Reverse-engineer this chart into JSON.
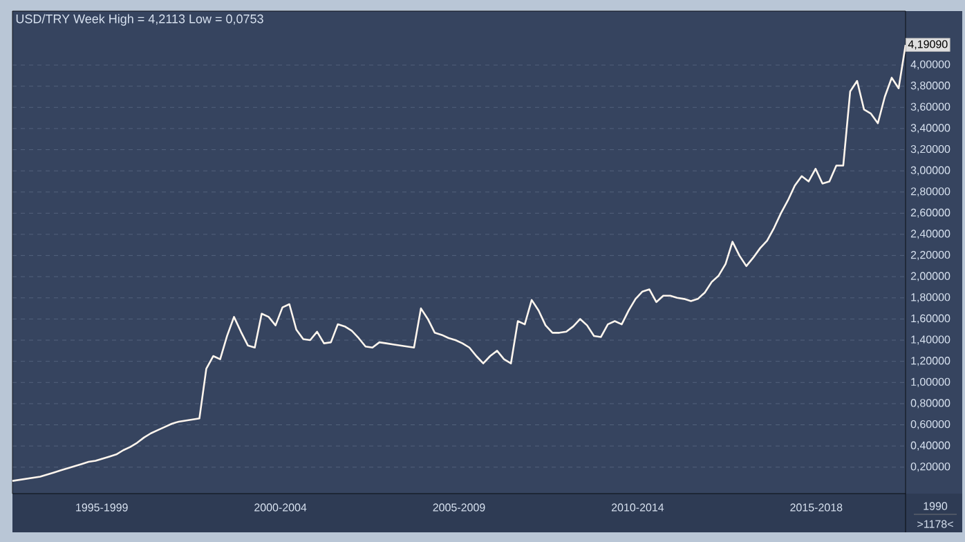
{
  "chart_data": {
    "type": "line",
    "title": "USD/TRY Week High = 4,2113 Low = 0,0753",
    "categories": [
      null,
      null,
      null,
      null,
      null,
      null,
      null,
      null,
      null,
      null,
      null,
      null,
      null,
      null,
      null,
      null,
      null,
      null,
      null,
      null,
      null,
      null,
      null,
      null,
      null,
      null,
      null,
      null,
      null,
      null,
      null,
      null,
      null,
      null,
      null,
      null,
      null,
      null,
      null,
      null,
      null,
      null,
      null,
      null,
      null,
      null,
      null,
      null,
      null,
      null,
      null,
      null,
      null,
      null,
      null,
      null,
      null,
      null,
      null,
      null,
      null,
      null,
      null,
      null,
      null,
      null,
      null,
      null,
      null,
      null,
      null,
      null,
      null,
      null,
      null,
      null,
      null,
      null,
      null,
      null,
      null,
      null,
      null,
      null,
      null,
      null,
      null,
      null,
      null,
      null,
      null,
      null,
      null,
      null,
      null,
      null,
      null,
      null,
      null,
      null,
      null,
      null,
      null,
      null,
      null,
      null,
      null,
      null,
      null,
      null,
      null,
      null,
      null,
      null,
      null,
      null,
      null,
      null,
      null,
      null,
      null,
      null,
      null,
      null,
      null,
      null,
      null,
      null,
      null,
      null
    ],
    "values": [
      0.07,
      0.08,
      0.09,
      0.1,
      0.11,
      0.13,
      0.15,
      0.17,
      0.19,
      0.21,
      0.23,
      0.25,
      0.26,
      0.28,
      0.3,
      0.32,
      0.36,
      0.39,
      0.43,
      0.48,
      0.52,
      0.55,
      0.58,
      0.61,
      0.63,
      0.64,
      0.65,
      0.66,
      1.13,
      1.25,
      1.22,
      1.44,
      1.62,
      1.48,
      1.35,
      1.33,
      1.65,
      1.62,
      1.54,
      1.71,
      1.74,
      1.5,
      1.41,
      1.4,
      1.48,
      1.37,
      1.38,
      1.55,
      1.53,
      1.49,
      1.42,
      1.34,
      1.33,
      1.38,
      1.37,
      1.36,
      1.35,
      1.34,
      1.33,
      1.7,
      1.6,
      1.47,
      1.45,
      1.42,
      1.4,
      1.37,
      1.33,
      1.25,
      1.18,
      1.25,
      1.3,
      1.22,
      1.18,
      1.58,
      1.55,
      1.78,
      1.68,
      1.54,
      1.47,
      1.47,
      1.48,
      1.53,
      1.6,
      1.54,
      1.44,
      1.43,
      1.55,
      1.58,
      1.55,
      1.68,
      1.79,
      1.86,
      1.88,
      1.76,
      1.82,
      1.82,
      1.8,
      1.79,
      1.77,
      1.79,
      1.85,
      1.95,
      2.01,
      2.12,
      2.33,
      2.2,
      2.1,
      2.18,
      2.27,
      2.34,
      2.46,
      2.6,
      2.72,
      2.86,
      2.95,
      2.9,
      3.02,
      2.88,
      2.9,
      3.05,
      3.05,
      3.75,
      3.85,
      3.58,
      3.54,
      3.45,
      3.7,
      3.88,
      3.78,
      4.19
    ],
    "color": "#fff6ee",
    "ylim": [
      -0.05,
      4.51
    ],
    "yticks": [
      {
        "value": 0.2,
        "label": "0,20000"
      },
      {
        "value": 0.4,
        "label": "0,40000"
      },
      {
        "value": 0.6,
        "label": "0,60000"
      },
      {
        "value": 0.8,
        "label": "0,80000"
      },
      {
        "value": 1.0,
        "label": "1,00000"
      },
      {
        "value": 1.2,
        "label": "1,20000"
      },
      {
        "value": 1.4,
        "label": "1,40000"
      },
      {
        "value": 1.6,
        "label": "1,60000"
      },
      {
        "value": 1.8,
        "label": "1,80000"
      },
      {
        "value": 2.0,
        "label": "2,00000"
      },
      {
        "value": 2.2,
        "label": "2,20000"
      },
      {
        "value": 2.4,
        "label": "2,40000"
      },
      {
        "value": 2.6,
        "label": "2,60000"
      },
      {
        "value": 2.8,
        "label": "2,80000"
      },
      {
        "value": 3.0,
        "label": "3,00000"
      },
      {
        "value": 3.2,
        "label": "3,20000"
      },
      {
        "value": 3.4,
        "label": "3,40000"
      },
      {
        "value": 3.6,
        "label": "3,60000"
      },
      {
        "value": 3.8,
        "label": "3,80000"
      },
      {
        "value": 4.0,
        "label": "4,00000"
      }
    ],
    "grid": "y",
    "annotations": [
      {
        "text": "4,19090",
        "y": 4.1909
      },
      "1995-1999",
      "2000-2004",
      "2005-2009",
      "2010-2014",
      "2015-2018",
      "1990",
      ">1178<"
    ]
  }
}
